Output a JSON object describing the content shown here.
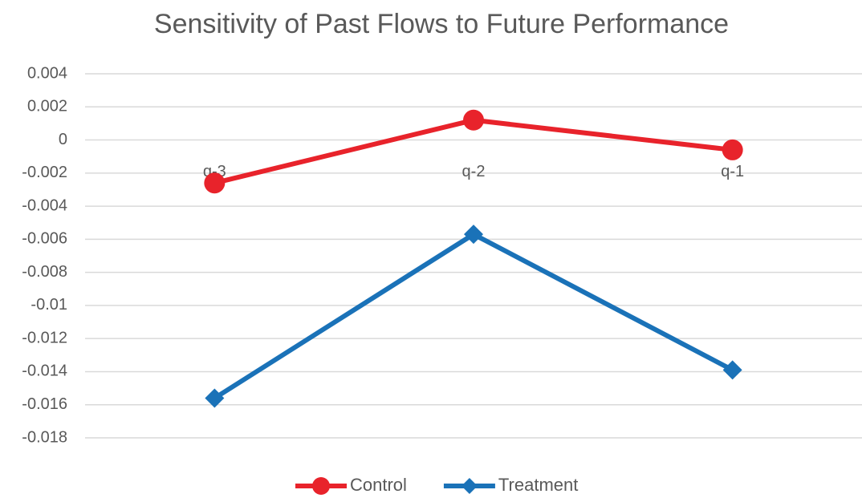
{
  "chart_data": {
    "type": "line",
    "title": "Sensitivity of Past Flows to Future Performance",
    "categories": [
      "q-3",
      "q-2",
      "q-1"
    ],
    "series": [
      {
        "name": "Control",
        "color": "#e8232b",
        "marker": "circle",
        "values": [
          -0.0026,
          0.0012,
          -0.0006
        ]
      },
      {
        "name": "Treatment",
        "color": "#1a72b8",
        "marker": "diamond",
        "values": [
          -0.0156,
          -0.0057,
          -0.0139
        ]
      }
    ],
    "ylim": [
      -0.018,
      0.004
    ],
    "yticks": [
      0.004,
      0.002,
      0,
      -0.002,
      -0.004,
      -0.006,
      -0.008,
      -0.01,
      -0.012,
      -0.014,
      -0.016,
      -0.018
    ],
    "grid": true,
    "legend": "bottom"
  }
}
